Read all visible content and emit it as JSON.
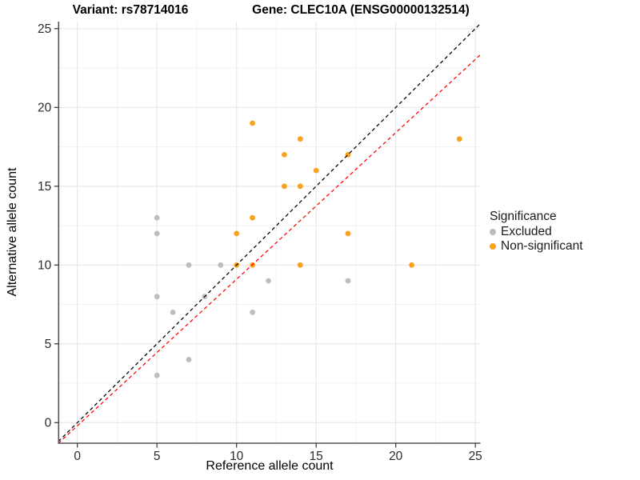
{
  "titles": {
    "variant": "Variant: rs78714016",
    "gene": "Gene: CLEC10A (ENSG00000132514)"
  },
  "chart_data": {
    "type": "scatter",
    "xlabel": "Reference allele count",
    "ylabel": "Alternative allele count",
    "xlim": [
      -1.2,
      25.3
    ],
    "ylim": [
      -1.3,
      25.45
    ],
    "xticks": [
      0,
      5,
      10,
      15,
      20,
      25
    ],
    "yticks": [
      0,
      5,
      10,
      15,
      20,
      25
    ],
    "minor_ticks": [
      2.5,
      7.5,
      12.5,
      17.5,
      22.5
    ],
    "grid": true,
    "legend": {
      "title": "Significance",
      "position": "right",
      "entries": [
        {
          "label": "Excluded",
          "color": "#bdbdbd"
        },
        {
          "label": "Non-significant",
          "color": "#f9a21d"
        }
      ]
    },
    "series": [
      {
        "name": "Excluded",
        "color": "#bdbdbd",
        "points": [
          [
            5,
            3
          ],
          [
            5,
            8
          ],
          [
            5,
            12
          ],
          [
            5,
            13
          ],
          [
            6,
            7
          ],
          [
            7,
            4
          ],
          [
            7,
            10
          ],
          [
            8,
            8
          ],
          [
            9,
            10
          ],
          [
            11,
            7
          ],
          [
            12,
            9
          ],
          [
            17,
            9
          ]
        ]
      },
      {
        "name": "Non-significant",
        "color": "#f9a21d",
        "points": [
          [
            10,
            10
          ],
          [
            10,
            12
          ],
          [
            11,
            10
          ],
          [
            11,
            13
          ],
          [
            11,
            19
          ],
          [
            13,
            15
          ],
          [
            13,
            17
          ],
          [
            14,
            10
          ],
          [
            14,
            15
          ],
          [
            14,
            18
          ],
          [
            15,
            16
          ],
          [
            17,
            12
          ],
          [
            17,
            17
          ],
          [
            21,
            10
          ],
          [
            24,
            18
          ]
        ]
      }
    ],
    "lines": [
      {
        "name": "identity-line",
        "color": "#000000",
        "style": "dashed",
        "slope": 1.0,
        "intercept": 0.0
      },
      {
        "name": "fit-line",
        "color": "#ff0000",
        "style": "dashed",
        "slope": 0.93,
        "intercept": -0.2
      }
    ],
    "colors": {
      "grid_major": "#e7e7e7",
      "grid_minor": "#f2f2f2",
      "axis_line": "#555555",
      "tick": "#333333",
      "tick_label": "#2b2b2b"
    }
  }
}
